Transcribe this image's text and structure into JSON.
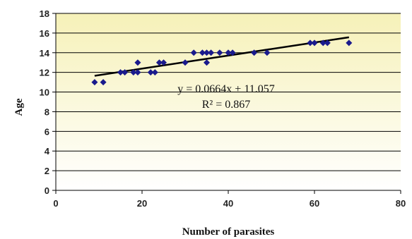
{
  "chart_data": {
    "type": "scatter",
    "xlabel": "Number of parasites",
    "ylabel": "Age",
    "xlim": [
      0,
      80
    ],
    "ylim": [
      0,
      18
    ],
    "xticks": [
      0,
      20,
      40,
      60,
      80
    ],
    "yticks": [
      0,
      2,
      4,
      6,
      8,
      10,
      12,
      14,
      16,
      18
    ],
    "grid": "horizontal",
    "marker": "diamond",
    "colors": {
      "marker": "#1a1a8c",
      "trendline": "#000000",
      "plot_bg_top": "#f6f1b8",
      "plot_bg_bottom": "#ffffff"
    },
    "series": [
      {
        "points": [
          {
            "x": 9,
            "y": 11
          },
          {
            "x": 11,
            "y": 11
          },
          {
            "x": 15,
            "y": 12
          },
          {
            "x": 16,
            "y": 12
          },
          {
            "x": 18,
            "y": 12
          },
          {
            "x": 19,
            "y": 12
          },
          {
            "x": 19,
            "y": 13
          },
          {
            "x": 22,
            "y": 12
          },
          {
            "x": 23,
            "y": 12
          },
          {
            "x": 24,
            "y": 13
          },
          {
            "x": 25,
            "y": 13
          },
          {
            "x": 30,
            "y": 13
          },
          {
            "x": 32,
            "y": 14
          },
          {
            "x": 34,
            "y": 14
          },
          {
            "x": 35,
            "y": 13
          },
          {
            "x": 35,
            "y": 14
          },
          {
            "x": 36,
            "y": 14
          },
          {
            "x": 38,
            "y": 14
          },
          {
            "x": 40,
            "y": 14
          },
          {
            "x": 41,
            "y": 14
          },
          {
            "x": 46,
            "y": 14
          },
          {
            "x": 49,
            "y": 14
          },
          {
            "x": 59,
            "y": 15
          },
          {
            "x": 60,
            "y": 15
          },
          {
            "x": 62,
            "y": 15
          },
          {
            "x": 63,
            "y": 15
          },
          {
            "x": 68,
            "y": 15
          }
        ]
      }
    ],
    "trendline": {
      "slope": 0.0664,
      "intercept": 11.057,
      "x_range": [
        9,
        68
      ],
      "equation": "y = 0.0664x + 11.057",
      "r_squared": "R² = 0.867"
    }
  }
}
